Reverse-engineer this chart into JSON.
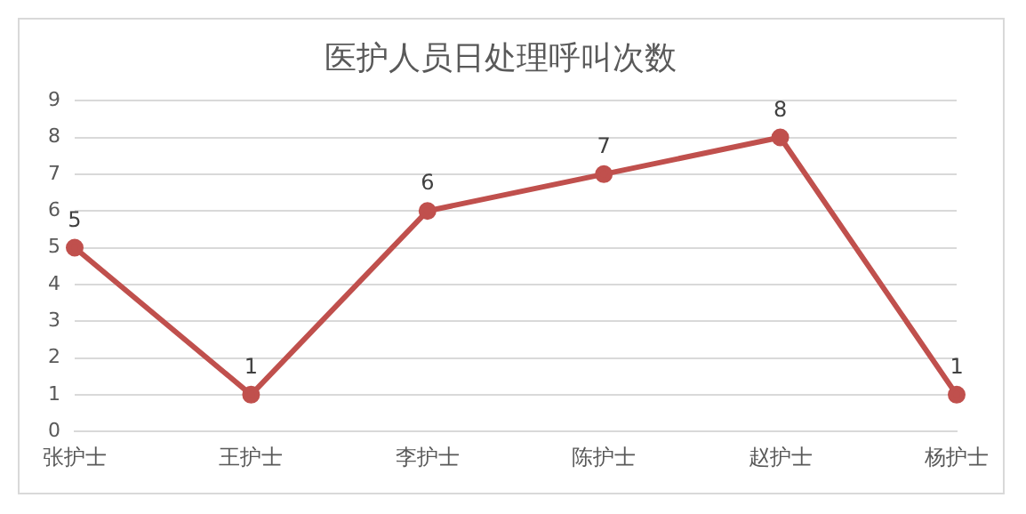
{
  "chart_data": {
    "type": "line",
    "title": "医护人员日处理呼叫次数",
    "categories": [
      "张护士",
      "王护士",
      "李护士",
      "陈护士",
      "赵护士",
      "杨护士"
    ],
    "series": [
      {
        "color": "#c0504d",
        "values": [
          5,
          1,
          6,
          7,
          8,
          1
        ]
      }
    ],
    "ylim": [
      0,
      9
    ],
    "yticks": [
      0,
      1,
      2,
      3,
      4,
      5,
      6,
      7,
      8,
      9
    ],
    "grid": "y",
    "legend": false,
    "marker": "circle",
    "line_style": "solid",
    "data_labels": true
  }
}
